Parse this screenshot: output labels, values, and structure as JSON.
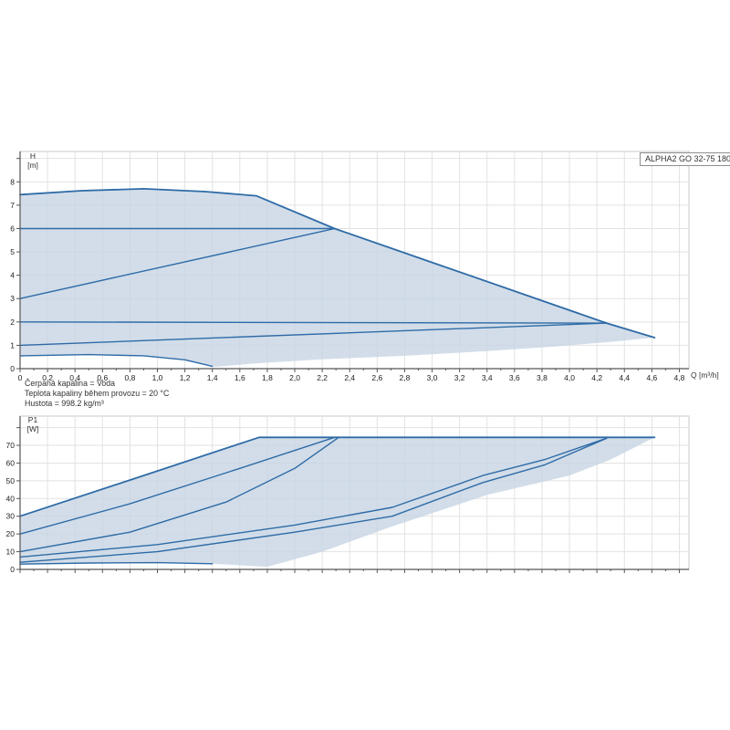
{
  "header": {
    "series_box_label": "ALPHA2 GO 32-75 180"
  },
  "annotations": [
    "Čerpaná kapalina = Voda",
    "Teplota kapaliny během provozu = 20 °C",
    "Hustota = 998.2 kg/m³"
  ],
  "colors": {
    "curve": "#2e6ba6",
    "fill": "#c7d5e4",
    "fill_opacity": 0.8,
    "grid": "#e2e2e2",
    "border": "#c9c9c9",
    "axis": "#555555",
    "tick_text": "#222222"
  },
  "chart_data": [
    {
      "id": "qh-curve",
      "type": "area",
      "title": "ALPHA2 GO 32-75 180",
      "xlabel": "Q [m³/h]",
      "ylabel": "H [m]",
      "ylabel_lines": [
        "H",
        "[m]"
      ],
      "xlim": [
        0,
        4.87
      ],
      "ylim": [
        0,
        9.3
      ],
      "x_tick_step": 0.2,
      "x_minor_tick_step": 0.1,
      "x_max_tick": 4.8,
      "x_tick_labels": [
        "0",
        "0,2",
        "0,4",
        "0,6",
        "0,8",
        "1,0",
        "1,2",
        "1,4",
        "1,6",
        "1,8",
        "2,0",
        "2,2",
        "2,4",
        "2,6",
        "2,8",
        "3,0",
        "3,2",
        "3,4",
        "3,6",
        "3,8",
        "4,0",
        "4,2",
        "4,4",
        "4,6",
        "4,8"
      ],
      "y_ticks": [
        0,
        1,
        2,
        3,
        4,
        5,
        6,
        7,
        8
      ],
      "y_extra_ticks": [
        9
      ],
      "grid_y_step": 1,
      "grid": true,
      "legend": "none",
      "series": [
        {
          "name": "max-speed-curve",
          "points": [
            [
              0,
              7.45
            ],
            [
              0.45,
              7.62
            ],
            [
              0.9,
              7.7
            ],
            [
              1.35,
              7.58
            ],
            [
              1.72,
              7.4
            ],
            [
              2.29,
              6.0
            ],
            [
              3.0,
              4.55
            ],
            [
              4.27,
              1.95
            ],
            [
              4.62,
              1.33
            ]
          ]
        },
        {
          "name": "constant-pressure-6m",
          "points": [
            [
              0,
              6.0
            ],
            [
              2.29,
              6.0
            ]
          ]
        },
        {
          "name": "proportional-pressure-6m",
          "points": [
            [
              0,
              3.0
            ],
            [
              2.29,
              6.0
            ]
          ]
        },
        {
          "name": "constant-pressure-2m",
          "points": [
            [
              0,
              2.0
            ],
            [
              4.27,
              1.95
            ]
          ]
        },
        {
          "name": "proportional-pressure-2m",
          "points": [
            [
              0,
              1.0
            ],
            [
              4.27,
              1.95
            ]
          ]
        },
        {
          "name": "min-speed-curve",
          "points": [
            [
              0,
              0.55
            ],
            [
              0.5,
              0.6
            ],
            [
              0.9,
              0.55
            ],
            [
              1.2,
              0.38
            ],
            [
              1.4,
              0.1
            ]
          ]
        }
      ],
      "envelope": [
        [
          0,
          7.45
        ],
        [
          0.45,
          7.62
        ],
        [
          0.9,
          7.7
        ],
        [
          1.35,
          7.58
        ],
        [
          1.72,
          7.4
        ],
        [
          2.29,
          6.0
        ],
        [
          3.0,
          4.55
        ],
        [
          4.27,
          1.95
        ],
        [
          4.62,
          1.33
        ],
        [
          4.3,
          1.15
        ],
        [
          3.9,
          0.95
        ],
        [
          3.4,
          0.75
        ],
        [
          2.8,
          0.55
        ],
        [
          2.2,
          0.4
        ],
        [
          1.7,
          0.22
        ],
        [
          1.42,
          0.08
        ],
        [
          1.2,
          0.38
        ],
        [
          0.9,
          0.55
        ],
        [
          0.5,
          0.6
        ],
        [
          0,
          0.55
        ]
      ]
    },
    {
      "id": "power-curve",
      "type": "area",
      "title": "",
      "xlabel": "",
      "ylabel": "P1 [W]",
      "ylabel_lines": [
        "P1",
        "[W]"
      ],
      "xlim": [
        0,
        4.87
      ],
      "ylim": [
        0,
        86.5
      ],
      "x_tick_step": 0.2,
      "x_minor_tick_step": 0.1,
      "x_max_tick": 4.8,
      "x_tick_labels": [],
      "y_ticks": [
        0,
        10,
        20,
        30,
        40,
        50,
        60,
        70
      ],
      "y_extra_ticks": [
        80
      ],
      "grid_y_step": 10,
      "grid": true,
      "legend": "none",
      "series": [
        {
          "name": "max-speed-power",
          "points": [
            [
              0,
              30
            ],
            [
              0.9,
              53
            ],
            [
              1.74,
              74.5
            ],
            [
              4.62,
              74.5
            ]
          ]
        },
        {
          "name": "constant-pressure-6m-power",
          "points": [
            [
              0,
              20
            ],
            [
              0.8,
              37
            ],
            [
              1.6,
              57
            ],
            [
              2.29,
              74.5
            ]
          ]
        },
        {
          "name": "proportional-pressure-6m-power",
          "points": [
            [
              0,
              10
            ],
            [
              0.8,
              21
            ],
            [
              1.5,
              38
            ],
            [
              2.0,
              57
            ],
            [
              2.32,
              74.5
            ]
          ]
        },
        {
          "name": "constant-pressure-2m-power",
          "points": [
            [
              0,
              7
            ],
            [
              1.0,
              14
            ],
            [
              2.0,
              25
            ],
            [
              2.71,
              35
            ],
            [
              3.37,
              53
            ],
            [
              3.82,
              62
            ],
            [
              4.27,
              74
            ]
          ]
        },
        {
          "name": "proportional-pressure-2m-power",
          "points": [
            [
              0,
              4
            ],
            [
              1.0,
              10
            ],
            [
              2.0,
              21
            ],
            [
              2.71,
              30
            ],
            [
              3.37,
              49
            ],
            [
              3.82,
              59
            ],
            [
              4.27,
              74
            ]
          ]
        },
        {
          "name": "min-speed-power",
          "points": [
            [
              0,
              3
            ],
            [
              0.5,
              3.6
            ],
            [
              1.0,
              3.8
            ],
            [
              1.4,
              3.2
            ]
          ]
        }
      ],
      "envelope": [
        [
          0,
          30
        ],
        [
          0.9,
          53
        ],
        [
          1.74,
          74.5
        ],
        [
          4.62,
          74.5
        ],
        [
          4.3,
          62
        ],
        [
          4.0,
          53
        ],
        [
          3.4,
          42
        ],
        [
          2.7,
          24
        ],
        [
          2.2,
          10
        ],
        [
          1.8,
          1.5
        ],
        [
          1.4,
          3.2
        ],
        [
          1.0,
          3.8
        ],
        [
          0.5,
          3.6
        ],
        [
          0,
          3
        ]
      ]
    }
  ]
}
